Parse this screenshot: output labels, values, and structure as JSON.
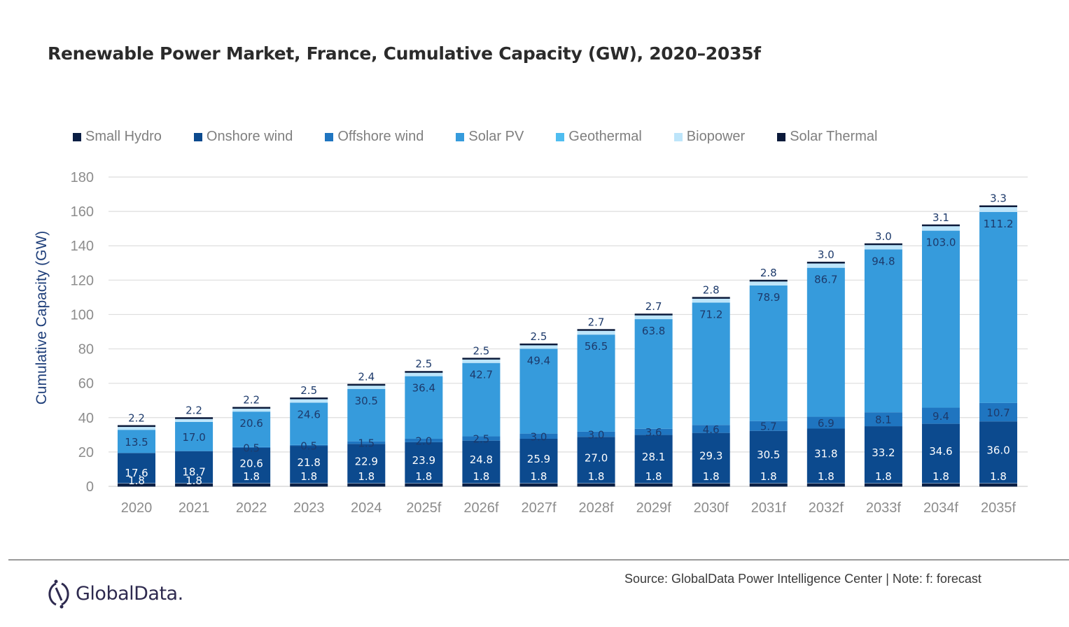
{
  "chart_data": {
    "type": "bar",
    "stacked": true,
    "title": "Renewable Power Market, France, Cumulative Capacity (GW), 2020–2035f",
    "xlabel": "",
    "ylabel": "Cumulative Capacity (GW)",
    "ylim": [
      0,
      180
    ],
    "yticks": [
      0,
      20,
      40,
      60,
      80,
      100,
      120,
      140,
      160,
      180
    ],
    "grid": true,
    "legend_position": "top",
    "categories": [
      "2020",
      "2021",
      "2022",
      "2023",
      "2024",
      "2025f",
      "2026f",
      "2027f",
      "2028f",
      "2029f",
      "2030f",
      "2031f",
      "2032f",
      "2033f",
      "2034f",
      "2035f"
    ],
    "series": [
      {
        "name": "Small Hydro",
        "color": "#0b1f44",
        "label_color": "#ffffff",
        "values": [
          1.8,
          1.8,
          1.8,
          1.8,
          1.8,
          1.8,
          1.8,
          1.8,
          1.8,
          1.8,
          1.8,
          1.8,
          1.8,
          1.8,
          1.8,
          1.8
        ]
      },
      {
        "name": "Onshore wind",
        "color": "#0c4a8e",
        "label_color": "#ffffff",
        "values": [
          17.6,
          18.7,
          20.6,
          21.8,
          22.9,
          23.9,
          24.8,
          25.9,
          27.0,
          28.1,
          29.3,
          30.5,
          31.8,
          33.2,
          34.6,
          36.0
        ]
      },
      {
        "name": "Offshore wind",
        "color": "#1f75c0",
        "label_color": "#1d3a6b",
        "values": [
          0,
          0,
          0.5,
          0.5,
          1.5,
          2.0,
          2.5,
          3.0,
          3.0,
          3.6,
          4.6,
          5.7,
          6.9,
          8.1,
          9.4,
          10.7
        ]
      },
      {
        "name": "Solar PV",
        "color": "#369bdc",
        "label_color": "#1d3a6b",
        "values": [
          13.5,
          17.0,
          20.6,
          24.6,
          30.5,
          36.4,
          42.7,
          49.4,
          56.5,
          63.8,
          71.2,
          78.9,
          86.7,
          94.8,
          103.0,
          111.2
        ]
      },
      {
        "name": "Geothermal",
        "color": "#4fbdf0",
        "label_color": "#1d3a6b",
        "values": [
          0,
          0,
          0,
          0,
          0,
          0,
          0,
          0,
          0,
          0,
          0,
          0,
          0,
          0,
          0,
          0
        ]
      },
      {
        "name": "Biopower",
        "color": "#bde5fa",
        "label_color": "#1d3a6b",
        "values": [
          2.2,
          2.2,
          2.2,
          2.5,
          2.4,
          2.5,
          2.5,
          2.5,
          2.7,
          2.7,
          2.8,
          2.8,
          3.0,
          3.0,
          3.1,
          3.3
        ]
      },
      {
        "name": "Solar Thermal",
        "color": "#0b1a3a",
        "label_color": "#1d3a6b",
        "values": [
          0.1,
          0.1,
          0.1,
          0.1,
          0.1,
          0.1,
          0.1,
          0.1,
          0.1,
          0.1,
          0.1,
          0.1,
          0.1,
          0.1,
          0.1,
          0.1
        ]
      }
    ],
    "data_labels": {
      "Small Hydro": [
        "1.8",
        "1.8",
        "1.8",
        "1.8",
        "1.8",
        "1.8",
        "1.8",
        "1.8",
        "1.8",
        "1.8",
        "1.8",
        "1.8",
        "1.8",
        "1.8",
        "1.8",
        "1.8"
      ],
      "Onshore wind": [
        "17.6",
        "18.7",
        "20.6",
        "21.8",
        "22.9",
        "23.9",
        "24.8",
        "25.9",
        "27.0",
        "28.1",
        "29.3",
        "30.5",
        "31.8",
        "33.2",
        "34.6",
        "36.0"
      ],
      "Offshore wind": [
        "",
        "",
        "0.5",
        "0.5",
        "1.5",
        "2.0",
        "2.5",
        "3.0",
        "3.0",
        "3.6",
        "4.6",
        "5.7",
        "6.9",
        "8.1",
        "9.4",
        "10.7"
      ],
      "Solar PV": [
        "13.5",
        "17.0",
        "20.6",
        "24.6",
        "30.5",
        "36.4",
        "42.7",
        "49.4",
        "56.5",
        "63.8",
        "71.2",
        "78.9",
        "86.7",
        "94.8",
        "103.0",
        "111.2"
      ],
      "Biopower": [
        "2.2",
        "2.2",
        "2.2",
        "2.5",
        "2.4",
        "2.5",
        "2.5",
        "2.5",
        "2.7",
        "2.7",
        "2.8",
        "2.8",
        "3.0",
        "3.0",
        "3.1",
        "3.3"
      ]
    }
  },
  "footer": {
    "source": "Source: GlobalData Power Intelligence Center | Note: f: forecast",
    "logo_text": "GlobalData."
  }
}
